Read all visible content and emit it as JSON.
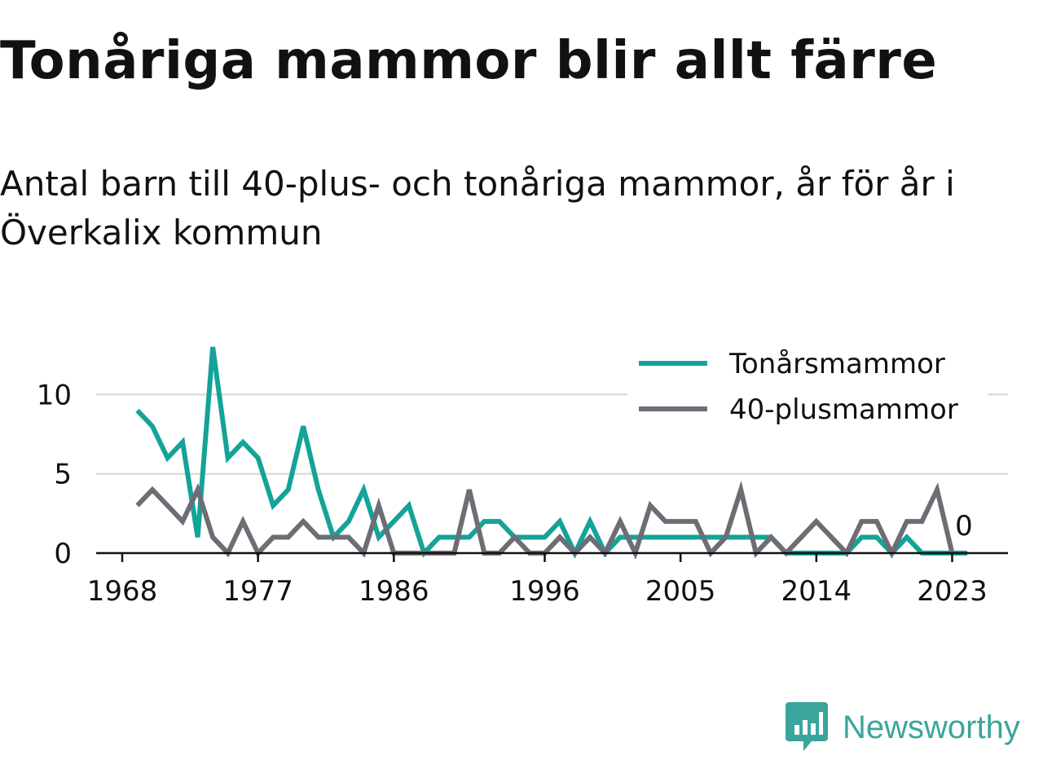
{
  "title": "Tonåriga mammor blir allt färre",
  "subtitle": "Antal barn till 40-plus- och tonåriga mammor, år för år i Överkalix kommun",
  "brand": {
    "name": "Newsworthy",
    "icon": "newsworthy-logo-icon"
  },
  "colors": {
    "teen": "#14a398",
    "older": "#6d6d75",
    "grid": "#dcdcdc",
    "axis": "#111111"
  },
  "chart_data": {
    "type": "line",
    "xlim": [
      1968,
      2024
    ],
    "ylim": [
      0,
      13
    ],
    "x_ticks": [
      1968,
      1977,
      1986,
      1996,
      2005,
      2014,
      2023
    ],
    "y_ticks": [
      0,
      5,
      10
    ],
    "grid": true,
    "legend_position": "top-right",
    "end_label": "0",
    "series": [
      {
        "name": "Tonårsmammor",
        "color": "#14a398",
        "x": [
          1969,
          1970,
          1971,
          1972,
          1973,
          1974,
          1975,
          1976,
          1977,
          1978,
          1979,
          1980,
          1981,
          1982,
          1983,
          1984,
          1985,
          1986,
          1987,
          1988,
          1989,
          1990,
          1991,
          1992,
          1993,
          1994,
          1995,
          1996,
          1997,
          1998,
          1999,
          2000,
          2001,
          2002,
          2003,
          2004,
          2005,
          2006,
          2007,
          2008,
          2009,
          2010,
          2011,
          2012,
          2013,
          2014,
          2015,
          2016,
          2017,
          2018,
          2019,
          2020,
          2021,
          2022,
          2023,
          2024
        ],
        "values": [
          9,
          8,
          6,
          7,
          1,
          13,
          6,
          7,
          6,
          3,
          4,
          8,
          4,
          1,
          2,
          4,
          1,
          2,
          3,
          0,
          1,
          1,
          1,
          2,
          2,
          1,
          1,
          1,
          2,
          0,
          2,
          0,
          1,
          1,
          1,
          1,
          1,
          1,
          1,
          1,
          1,
          1,
          1,
          0,
          0,
          0,
          0,
          0,
          1,
          1,
          0,
          1,
          0,
          0,
          0,
          0
        ]
      },
      {
        "name": "40-plusmammor",
        "color": "#6d6d75",
        "x": [
          1969,
          1970,
          1971,
          1972,
          1973,
          1974,
          1975,
          1976,
          1977,
          1978,
          1979,
          1980,
          1981,
          1982,
          1983,
          1984,
          1985,
          1986,
          1987,
          1988,
          1989,
          1990,
          1991,
          1992,
          1993,
          1994,
          1995,
          1996,
          1997,
          1998,
          1999,
          2000,
          2001,
          2002,
          2003,
          2004,
          2005,
          2006,
          2007,
          2008,
          2009,
          2010,
          2011,
          2012,
          2013,
          2014,
          2015,
          2016,
          2017,
          2018,
          2019,
          2020,
          2021,
          2022,
          2023
        ],
        "values": [
          3,
          4,
          3,
          2,
          4,
          1,
          0,
          2,
          0,
          1,
          1,
          2,
          1,
          1,
          1,
          0,
          3,
          0,
          0,
          0,
          0,
          0,
          4,
          0,
          0,
          1,
          0,
          0,
          1,
          0,
          1,
          0,
          2,
          0,
          3,
          2,
          2,
          2,
          0,
          1,
          4,
          0,
          1,
          0,
          1,
          2,
          1,
          0,
          2,
          2,
          0,
          2,
          2,
          4,
          0
        ]
      }
    ]
  }
}
